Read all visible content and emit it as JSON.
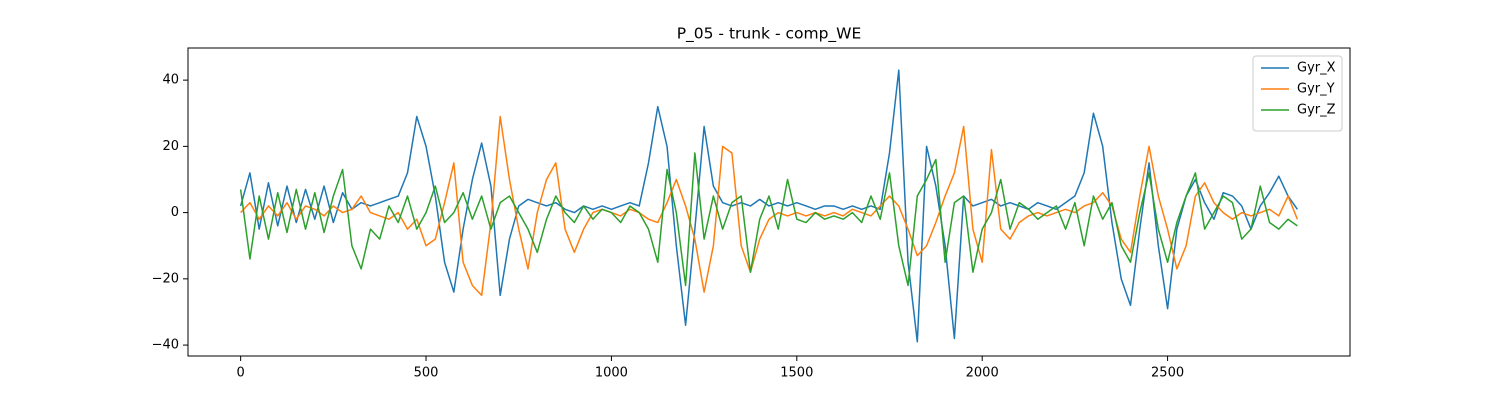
{
  "chart_data": {
    "type": "line",
    "title": "P_05 - trunk - comp_WE",
    "x": [
      0,
      25,
      50,
      75,
      100,
      125,
      150,
      175,
      200,
      225,
      250,
      275,
      300,
      325,
      350,
      375,
      400,
      425,
      450,
      475,
      500,
      525,
      550,
      575,
      600,
      625,
      650,
      675,
      700,
      725,
      750,
      775,
      800,
      825,
      850,
      875,
      900,
      925,
      950,
      975,
      1000,
      1025,
      1050,
      1075,
      1100,
      1125,
      1150,
      1175,
      1200,
      1225,
      1250,
      1275,
      1300,
      1325,
      1350,
      1375,
      1400,
      1425,
      1450,
      1475,
      1500,
      1525,
      1550,
      1575,
      1600,
      1625,
      1650,
      1675,
      1700,
      1725,
      1750,
      1775,
      1800,
      1825,
      1850,
      1875,
      1900,
      1925,
      1950,
      1975,
      2000,
      2025,
      2050,
      2075,
      2100,
      2125,
      2150,
      2175,
      2200,
      2225,
      2250,
      2275,
      2300,
      2325,
      2350,
      2375,
      2400,
      2425,
      2450,
      2475,
      2500,
      2525,
      2550,
      2575,
      2600,
      2625,
      2650,
      2675,
      2700,
      2725,
      2750,
      2775,
      2800,
      2825,
      2850
    ],
    "series": [
      {
        "name": "Gyr_X",
        "color": "#1f77b4",
        "values": [
          2,
          12,
          -5,
          9,
          -4,
          8,
          -3,
          7,
          -2,
          8,
          -3,
          6,
          1,
          3,
          2,
          3,
          4,
          5,
          12,
          29,
          20,
          5,
          -15,
          -24,
          -5,
          10,
          21,
          8,
          -25,
          -8,
          2,
          4,
          3,
          2,
          3,
          1,
          0,
          2,
          1,
          2,
          1,
          2,
          3,
          2,
          15,
          32,
          20,
          -10,
          -34,
          -5,
          26,
          8,
          3,
          2,
          3,
          2,
          4,
          2,
          3,
          2,
          3,
          2,
          1,
          2,
          2,
          1,
          2,
          1,
          2,
          1,
          18,
          43,
          -15,
          -39,
          20,
          8,
          -10,
          -38,
          5,
          2,
          3,
          4,
          2,
          3,
          2,
          1,
          3,
          2,
          1,
          3,
          5,
          12,
          30,
          20,
          -3,
          -20,
          -28,
          -5,
          15,
          -10,
          -29,
          -5,
          5,
          10,
          3,
          -2,
          6,
          5,
          2,
          -5,
          2,
          6,
          11,
          5,
          1
        ]
      },
      {
        "name": "Gyr_Y",
        "color": "#ff7f0e",
        "values": [
          0,
          3,
          -2,
          2,
          -1,
          3,
          -2,
          2,
          1,
          -1,
          2,
          0,
          1,
          5,
          0,
          -1,
          -2,
          0,
          -5,
          -2,
          -10,
          -8,
          3,
          15,
          -15,
          -22,
          -25,
          -3,
          29,
          10,
          -5,
          -17,
          0,
          10,
          15,
          -5,
          -12,
          -5,
          0,
          1,
          0,
          -1,
          1,
          0,
          -2,
          -3,
          3,
          10,
          2,
          -8,
          -24,
          -10,
          20,
          18,
          -10,
          -18,
          -8,
          -2,
          0,
          -1,
          0,
          -1,
          0,
          -1,
          0,
          -1,
          1,
          0,
          -1,
          2,
          5,
          2,
          -5,
          -13,
          -10,
          -3,
          5,
          12,
          26,
          -5,
          -15,
          19,
          -5,
          -8,
          -3,
          -1,
          0,
          -1,
          0,
          1,
          0,
          2,
          3,
          6,
          2,
          -8,
          -12,
          5,
          20,
          5,
          -5,
          -17,
          -10,
          5,
          9,
          3,
          0,
          -2,
          0,
          -1,
          0,
          1,
          -1,
          5,
          -2
        ]
      },
      {
        "name": "Gyr_Z",
        "color": "#2ca02c",
        "values": [
          7,
          -14,
          5,
          -8,
          6,
          -6,
          7,
          -5,
          6,
          -6,
          5,
          13,
          -10,
          -17,
          -5,
          -8,
          2,
          -3,
          5,
          -5,
          0,
          8,
          -3,
          0,
          6,
          -2,
          5,
          -5,
          3,
          5,
          0,
          -5,
          -12,
          -2,
          5,
          0,
          -3,
          2,
          -2,
          1,
          0,
          -3,
          2,
          0,
          -5,
          -15,
          13,
          0,
          -22,
          18,
          -8,
          5,
          -5,
          3,
          5,
          -18,
          -2,
          5,
          -5,
          10,
          -2,
          -3,
          0,
          -2,
          -1,
          -2,
          0,
          -3,
          5,
          -2,
          12,
          -10,
          -22,
          5,
          10,
          16,
          -15,
          3,
          5,
          -18,
          -5,
          0,
          10,
          -5,
          3,
          1,
          -2,
          0,
          2,
          -5,
          3,
          -10,
          5,
          -2,
          3,
          -10,
          -15,
          0,
          12,
          -5,
          -15,
          -3,
          5,
          12,
          -5,
          0,
          5,
          3,
          -8,
          -5,
          8,
          -3,
          -5,
          -2,
          -4
        ]
      }
    ],
    "xlim": [
      -142,
      2992
    ],
    "ylim": [
      -43.3,
      49.7
    ],
    "xticks": [
      0,
      500,
      1000,
      1500,
      2000,
      2500
    ],
    "yticks": [
      {
        "value": -40,
        "label": "−40"
      },
      {
        "value": -20,
        "label": "−20"
      },
      0,
      20,
      40
    ],
    "legend": "upper right"
  }
}
